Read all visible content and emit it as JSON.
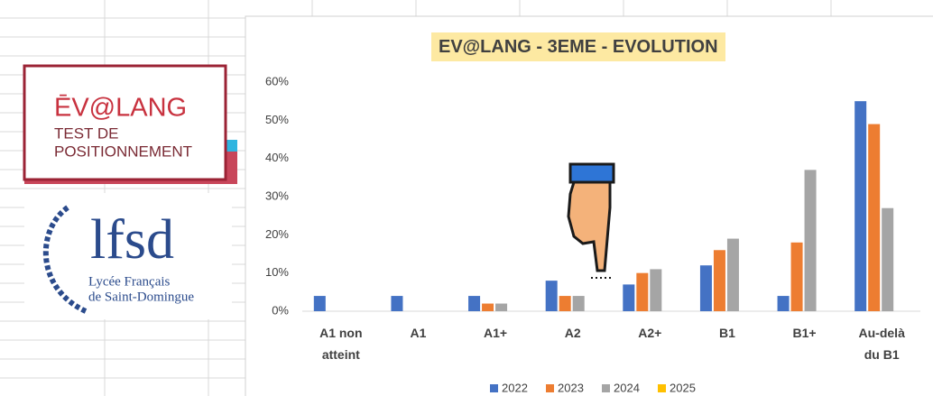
{
  "logos": {
    "evalang": {
      "name": "ĒV@LANG",
      "line1": "TEST DE",
      "line2": "POSITIONNEMENT"
    },
    "lfsd": {
      "name": "lfsd",
      "line1": "Lycée Français",
      "line2": "de Saint-Domingue"
    }
  },
  "chart_data": {
    "type": "bar",
    "title": "EV@LANG - 3EME - EVOLUTION",
    "categories": [
      "A1 non atteint",
      "A1",
      "A1+",
      "A2",
      "A2+",
      "B1",
      "B1+",
      "Au-delà du B1"
    ],
    "series": [
      {
        "name": "2022",
        "color": "#4472c4",
        "values": [
          4,
          4,
          4,
          8,
          7,
          12,
          4,
          55
        ]
      },
      {
        "name": "2023",
        "color": "#ed7d31",
        "values": [
          0,
          0,
          2,
          4,
          10,
          16,
          18,
          49
        ]
      },
      {
        "name": "2024",
        "color": "#a5a5a5",
        "values": [
          0,
          0,
          2,
          4,
          11,
          19,
          37,
          27
        ]
      },
      {
        "name": "2025",
        "color": "#ffc000",
        "values": [
          null,
          null,
          null,
          null,
          null,
          null,
          null,
          null
        ]
      }
    ],
    "ylim": [
      0,
      60
    ],
    "yticks": [
      {
        "value": 0,
        "label": "0%"
      },
      {
        "value": 10,
        "label": "10%"
      },
      {
        "value": 20,
        "label": "20%"
      },
      {
        "value": 30,
        "label": "30%"
      },
      {
        "value": 40,
        "label": "40%"
      },
      {
        "value": 50,
        "label": "50%"
      },
      {
        "value": 60,
        "label": "60%"
      }
    ],
    "grid": false,
    "legend": "bottom"
  }
}
